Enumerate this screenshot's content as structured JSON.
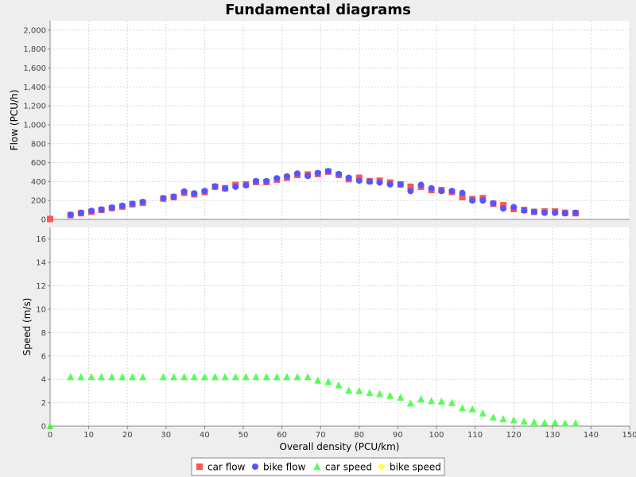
{
  "chart_data": {
    "type": "scatter",
    "title": "Fundamental diagrams",
    "xlabel": "Overall density (PCU/km)",
    "xlim": [
      0,
      150
    ],
    "x_ticks": [
      0,
      10,
      20,
      30,
      40,
      50,
      60,
      70,
      80,
      90,
      100,
      110,
      120,
      130,
      140,
      150
    ],
    "grid": true,
    "legend_position": "bottom-center",
    "subplots": [
      {
        "id": "flow",
        "ylabel": "Flow (PCU/h)",
        "ylim": [
          0,
          2100
        ],
        "y_ticks": [
          0,
          200,
          400,
          600,
          800,
          1000,
          1200,
          1400,
          1600,
          1800,
          2000
        ],
        "y_tick_labels": [
          "0",
          "200",
          "400",
          "600",
          "800",
          "1,000",
          "1,200",
          "1,400",
          "1,600",
          "1,800",
          "2,000"
        ],
        "series": [
          {
            "name": "car flow",
            "marker": "square",
            "color": "#ff5555",
            "points": [
              [
                0,
                5
              ],
              [
                5.3,
                45
              ],
              [
                8,
                65
              ],
              [
                10.7,
                80
              ],
              [
                13.3,
                100
              ],
              [
                16,
                120
              ],
              [
                18.7,
                135
              ],
              [
                21.3,
                160
              ],
              [
                24,
                175
              ],
              [
                29.3,
                220
              ],
              [
                32,
                235
              ],
              [
                34.7,
                280
              ],
              [
                37.3,
                265
              ],
              [
                40,
                290
              ],
              [
                42.7,
                345
              ],
              [
                45.3,
                330
              ],
              [
                48,
                365
              ],
              [
                50.7,
                370
              ],
              [
                53.3,
                395
              ],
              [
                56,
                395
              ],
              [
                58.7,
                420
              ],
              [
                61.3,
                440
              ],
              [
                64,
                470
              ],
              [
                66.7,
                475
              ],
              [
                69.3,
                480
              ],
              [
                72,
                505
              ],
              [
                74.7,
                470
              ],
              [
                77.3,
                425
              ],
              [
                80,
                440
              ],
              [
                82.7,
                405
              ],
              [
                85.3,
                410
              ],
              [
                88,
                390
              ],
              [
                90.7,
                370
              ],
              [
                93.3,
                345
              ],
              [
                96,
                345
              ],
              [
                98.7,
                310
              ],
              [
                101.3,
                310
              ],
              [
                104,
                290
              ],
              [
                106.7,
                235
              ],
              [
                109.3,
                215
              ],
              [
                112,
                225
              ],
              [
                114.7,
                165
              ],
              [
                117.3,
                150
              ],
              [
                120,
                110
              ],
              [
                122.7,
                100
              ],
              [
                125.3,
                80
              ],
              [
                128,
                85
              ],
              [
                130.7,
                85
              ],
              [
                133.3,
                70
              ],
              [
                136,
                65
              ]
            ]
          },
          {
            "name": "bike flow",
            "marker": "circle",
            "color": "#5555ff",
            "points": [
              [
                5.3,
                50
              ],
              [
                8,
                70
              ],
              [
                10.7,
                90
              ],
              [
                13.3,
                105
              ],
              [
                16,
                125
              ],
              [
                18.7,
                145
              ],
              [
                21.3,
                165
              ],
              [
                24,
                185
              ],
              [
                29.3,
                225
              ],
              [
                32,
                240
              ],
              [
                34.7,
                295
              ],
              [
                37.3,
                275
              ],
              [
                40,
                300
              ],
              [
                42.7,
                350
              ],
              [
                45.3,
                325
              ],
              [
                48,
                345
              ],
              [
                50.7,
                360
              ],
              [
                53.3,
                405
              ],
              [
                56,
                405
              ],
              [
                58.7,
                435
              ],
              [
                61.3,
                455
              ],
              [
                64,
                485
              ],
              [
                66.7,
                460
              ],
              [
                69.3,
                490
              ],
              [
                72,
                510
              ],
              [
                74.7,
                480
              ],
              [
                77.3,
                440
              ],
              [
                80,
                410
              ],
              [
                82.7,
                400
              ],
              [
                85.3,
                390
              ],
              [
                88,
                370
              ],
              [
                90.7,
                370
              ],
              [
                93.3,
                300
              ],
              [
                96,
                365
              ],
              [
                98.7,
                330
              ],
              [
                101.3,
                300
              ],
              [
                104,
                300
              ],
              [
                106.7,
                280
              ],
              [
                109.3,
                200
              ],
              [
                112,
                200
              ],
              [
                114.7,
                170
              ],
              [
                117.3,
                115
              ],
              [
                120,
                130
              ],
              [
                122.7,
                95
              ],
              [
                125.3,
                80
              ],
              [
                128,
                70
              ],
              [
                130.7,
                70
              ],
              [
                133.3,
                65
              ],
              [
                136,
                70
              ]
            ]
          }
        ]
      },
      {
        "id": "speed",
        "ylabel": "Speed (m/s)",
        "ylim": [
          0,
          17
        ],
        "y_ticks": [
          0,
          2,
          4,
          6,
          8,
          10,
          12,
          14,
          16
        ],
        "y_tick_labels": [
          "0",
          "2",
          "4",
          "6",
          "8",
          "10",
          "12",
          "14",
          "16"
        ],
        "series": [
          {
            "name": "car speed",
            "marker": "triangle",
            "color": "#55ff55",
            "points": [
              [
                0,
                0
              ],
              [
                5.3,
                4.2
              ],
              [
                8,
                4.2
              ],
              [
                10.7,
                4.2
              ],
              [
                13.3,
                4.2
              ],
              [
                16,
                4.2
              ],
              [
                18.7,
                4.2
              ],
              [
                21.3,
                4.2
              ],
              [
                24,
                4.2
              ],
              [
                29.3,
                4.2
              ],
              [
                32,
                4.2
              ],
              [
                34.7,
                4.2
              ],
              [
                37.3,
                4.2
              ],
              [
                40,
                4.2
              ],
              [
                42.7,
                4.2
              ],
              [
                45.3,
                4.2
              ],
              [
                48,
                4.2
              ],
              [
                50.7,
                4.2
              ],
              [
                53.3,
                4.2
              ],
              [
                56,
                4.2
              ],
              [
                58.7,
                4.2
              ],
              [
                61.3,
                4.2
              ],
              [
                64,
                4.2
              ],
              [
                66.7,
                4.2
              ],
              [
                69.3,
                3.9
              ],
              [
                72,
                3.8
              ],
              [
                74.7,
                3.5
              ],
              [
                77.3,
                3.05
              ],
              [
                80,
                3.0
              ],
              [
                82.7,
                2.85
              ],
              [
                85.3,
                2.75
              ],
              [
                88,
                2.6
              ],
              [
                90.7,
                2.45
              ],
              [
                93.3,
                1.95
              ],
              [
                96,
                2.3
              ],
              [
                98.7,
                2.15
              ],
              [
                101.3,
                2.1
              ],
              [
                104,
                2.0
              ],
              [
                106.7,
                1.55
              ],
              [
                109.3,
                1.45
              ],
              [
                112,
                1.1
              ],
              [
                114.7,
                0.75
              ],
              [
                117.3,
                0.6
              ],
              [
                120,
                0.5
              ],
              [
                122.7,
                0.4
              ],
              [
                125.3,
                0.35
              ],
              [
                128,
                0.3
              ],
              [
                130.7,
                0.3
              ],
              [
                133.3,
                0.25
              ],
              [
                136,
                0.25
              ]
            ]
          },
          {
            "name": "bike speed",
            "marker": "diamond",
            "color": "#ffff55",
            "points": []
          }
        ]
      }
    ]
  }
}
